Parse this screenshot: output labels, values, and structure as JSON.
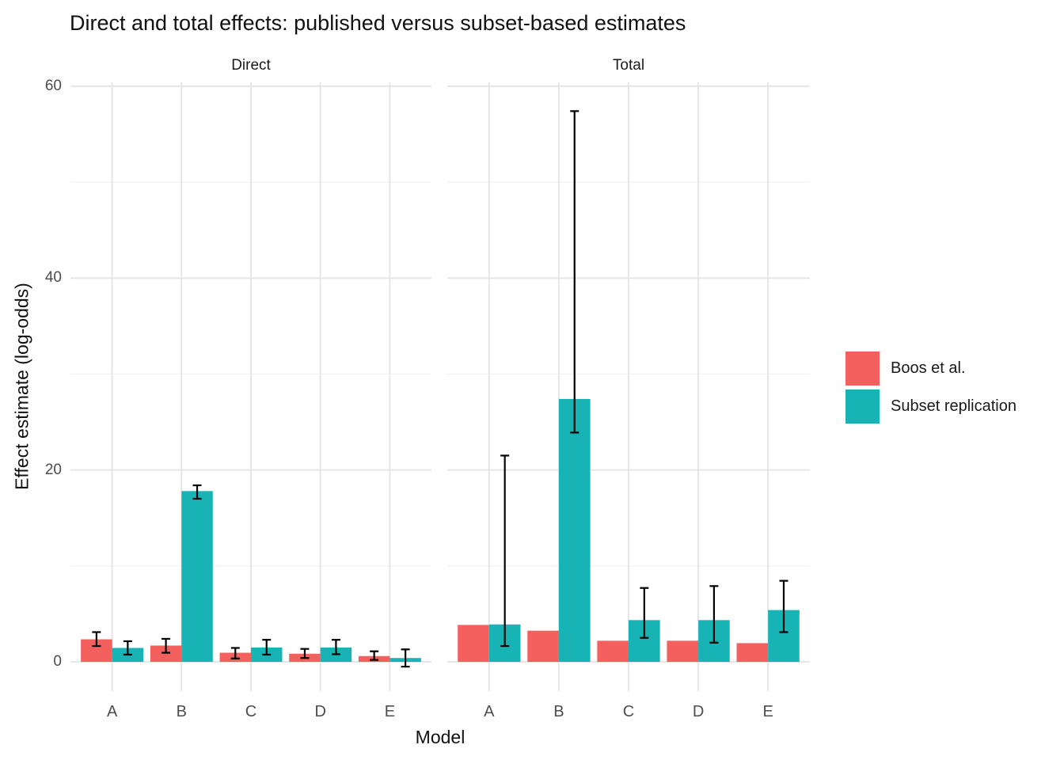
{
  "title": "Direct and total effects: published versus subset-based estimates",
  "axes": {
    "x_title": "Model",
    "y_title": "Effect estimate (log-odds)",
    "y_ticks": [
      0,
      20,
      40,
      60
    ],
    "y_minor_gridlines": [
      10,
      30,
      50
    ]
  },
  "legend": {
    "items": [
      {
        "label": "Boos et al.",
        "color": "#F4605D"
      },
      {
        "label": "Subset replication",
        "color": "#17B3B5"
      }
    ]
  },
  "colors": {
    "published": "#F4605D",
    "subset": "#17B3B5",
    "errorbar": "#000000",
    "grid_major": "#E6E6E6",
    "grid_minor": "#F1F1F1",
    "axis_text": "#4d4d4d"
  },
  "chart_data": {
    "type": "bar",
    "title": "Direct and total effects: published versus subset-based estimates",
    "xlabel": "Model",
    "ylabel": "Effect estimate (log-odds)",
    "categories": [
      "A",
      "B",
      "C",
      "D",
      "E"
    ],
    "ylim": [
      -3.05,
      60.4
    ],
    "grid": "on",
    "legend_position": "right",
    "error_bars": true,
    "facets": [
      {
        "label": "Direct",
        "series": [
          {
            "name": "Boos et al.",
            "color": "#F4605D",
            "values": [
              2.35,
              1.7,
              0.95,
              0.85,
              0.6
            ],
            "error_low": [
              1.65,
              0.95,
              0.35,
              0.4,
              0.2
            ],
            "error_high": [
              3.1,
              2.4,
              1.45,
              1.35,
              1.1
            ]
          },
          {
            "name": "Subset replication",
            "color": "#17B3B5",
            "values": [
              1.45,
              17.8,
              1.5,
              1.5,
              0.4
            ],
            "error_low": [
              0.75,
              17.0,
              0.75,
              0.8,
              -0.5
            ],
            "error_high": [
              2.15,
              18.4,
              2.3,
              2.3,
              1.3
            ]
          }
        ]
      },
      {
        "label": "Total",
        "series": [
          {
            "name": "Boos et al.",
            "color": "#F4605D",
            "values": [
              3.85,
              3.25,
              2.2,
              2.2,
              1.95
            ],
            "error_low": null,
            "error_high": null
          },
          {
            "name": "Subset replication",
            "color": "#17B3B5",
            "values": [
              3.9,
              27.4,
              4.35,
              4.35,
              5.4
            ],
            "error_low": [
              1.65,
              23.9,
              2.5,
              2.0,
              3.1
            ],
            "error_high": [
              21.5,
              57.4,
              7.7,
              7.9,
              8.45
            ]
          }
        ]
      }
    ]
  }
}
